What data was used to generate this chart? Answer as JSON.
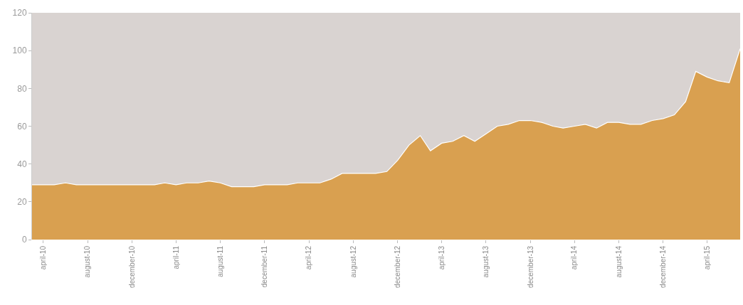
{
  "chart_data": {
    "type": "area",
    "x": [
      "2010-03",
      "2010-04",
      "2010-05",
      "2010-06",
      "2010-07",
      "2010-08",
      "2010-09",
      "2010-10",
      "2010-11",
      "2010-12",
      "2011-01",
      "2011-02",
      "2011-03",
      "2011-04",
      "2011-05",
      "2011-06",
      "2011-07",
      "2011-08",
      "2011-09",
      "2011-10",
      "2011-11",
      "2011-12",
      "2012-01",
      "2012-02",
      "2012-03",
      "2012-04",
      "2012-05",
      "2012-06",
      "2012-07",
      "2012-08",
      "2012-09",
      "2012-10",
      "2012-11",
      "2012-12",
      "2013-01",
      "2013-02",
      "2013-03",
      "2013-04",
      "2013-05",
      "2013-06",
      "2013-07",
      "2013-08",
      "2013-09",
      "2013-10",
      "2013-11",
      "2013-12",
      "2014-01",
      "2014-02",
      "2014-03",
      "2014-04",
      "2014-05",
      "2014-06",
      "2014-07",
      "2014-08",
      "2014-09",
      "2014-10",
      "2014-11",
      "2014-12",
      "2015-01",
      "2015-02",
      "2015-03",
      "2015-04",
      "2015-05",
      "2015-06",
      "2015-07"
    ],
    "series": [
      {
        "color": "#d9a050",
        "values": [
          29,
          29,
          29,
          30,
          29,
          29,
          29,
          29,
          29,
          29,
          29,
          29,
          30,
          29,
          30,
          30,
          31,
          30,
          28,
          28,
          28,
          29,
          29,
          29,
          30,
          30,
          30,
          32,
          35,
          35,
          35,
          35,
          36,
          42,
          50,
          55,
          47,
          51,
          52,
          55,
          52,
          56,
          60,
          61,
          63,
          63,
          62,
          60,
          59,
          60,
          61,
          59,
          62,
          62,
          61,
          61,
          63,
          64,
          66,
          73,
          89,
          86,
          84,
          83,
          101
        ]
      }
    ],
    "xlim": [
      "2010-03",
      "2015-07"
    ],
    "xticks": [
      {
        "value": "2010-04",
        "label": "april-10"
      },
      {
        "value": "2010-08",
        "label": "august-10"
      },
      {
        "value": "2010-12",
        "label": "december-10"
      },
      {
        "value": "2011-04",
        "label": "april-11"
      },
      {
        "value": "2011-08",
        "label": "august-11"
      },
      {
        "value": "2011-12",
        "label": "december-11"
      },
      {
        "value": "2012-04",
        "label": "april-12"
      },
      {
        "value": "2012-08",
        "label": "august-12"
      },
      {
        "value": "2012-12",
        "label": "december-12"
      },
      {
        "value": "2013-04",
        "label": "april-13"
      },
      {
        "value": "2013-08",
        "label": "august-13"
      },
      {
        "value": "2013-12",
        "label": "december-13"
      },
      {
        "value": "2014-04",
        "label": "april-14"
      },
      {
        "value": "2014-08",
        "label": "august-14"
      },
      {
        "value": "2014-12",
        "label": "december-14"
      },
      {
        "value": "2015-04",
        "label": "april-15"
      }
    ],
    "ylim": [
      0,
      120
    ],
    "yticks": [
      0,
      20,
      40,
      60,
      80,
      100,
      120
    ]
  }
}
